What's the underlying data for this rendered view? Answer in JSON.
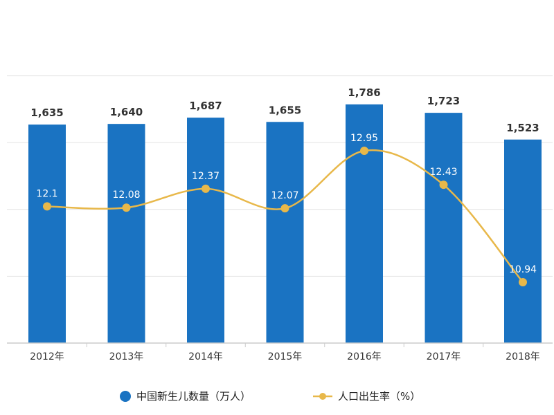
{
  "chart_data": {
    "type": "bar",
    "categories": [
      "2012年",
      "2013年",
      "2014年",
      "2015年",
      "2016年",
      "2017年",
      "2018年"
    ],
    "series": [
      {
        "name": "中国新生儿数量（万人）",
        "type": "bar",
        "axis": "left",
        "values": [
          1635,
          1640,
          1687,
          1655,
          1786,
          1723,
          1523
        ],
        "labels": [
          "1,635",
          "1,640",
          "1,687",
          "1,655",
          "1,786",
          "1,723",
          "1,523"
        ]
      },
      {
        "name": "人口出生率（%）",
        "type": "line",
        "axis": "right",
        "values": [
          12.1,
          12.08,
          12.37,
          12.07,
          12.95,
          12.43,
          10.94
        ],
        "labels": [
          "12.1",
          "12.08",
          "12.37",
          "12.07",
          "12.95",
          "12.43",
          "10.94"
        ]
      }
    ],
    "ylim_left": [
      0,
      2000
    ],
    "ylim_right": [
      7,
      14.4
    ],
    "grid": true,
    "legend_position": "bottom",
    "colors": {
      "bar": "#1a73c2",
      "line": "#e8b84a",
      "grid": "#e3e3e3"
    }
  }
}
